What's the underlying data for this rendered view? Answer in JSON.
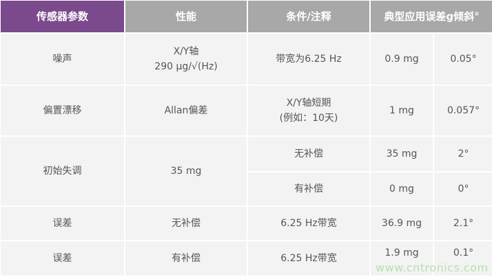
{
  "header": [
    "传感器参数",
    "性能",
    "条件/注释",
    "典型应用误差g倾斜°"
  ],
  "rows": [
    {
      "param": "噪声",
      "perf_l1": "X/Y轴",
      "perf_l2": "290 μg/√(Hz)",
      "cond": "带宽为6.25 Hz",
      "err_g": "0.9 mg",
      "err_tilt": "0.05°"
    },
    {
      "param": "偏置漂移",
      "perf": "Allan偏差",
      "cond_l1": "X/Y轴短期",
      "cond_l2": "(例如：10天)",
      "err_g": "1 mg",
      "err_tilt": "0.057°"
    },
    {
      "param": "初始失调",
      "perf": "35 mg",
      "cond": "无补偿",
      "err_g": "35 mg",
      "err_tilt": "2°"
    },
    {
      "cond": "有补偿",
      "err_g": "0 mg",
      "err_tilt": "0°"
    },
    {
      "param": "误差",
      "perf": "无补偿",
      "cond": "6.25 Hz带宽",
      "err_g": "36.9 mg",
      "err_tilt": "2.1°"
    },
    {
      "param": "误差",
      "perf": "有补偿",
      "cond": "6.25 Hz带宽",
      "err_g": "1.9 mg",
      "err_tilt": "0.1°"
    }
  ],
  "watermark": "www.cntronics.com",
  "colors": {
    "header_primary": "#7b4a8c",
    "header": "#a8a8a8",
    "cell": "#f3f3f3"
  }
}
